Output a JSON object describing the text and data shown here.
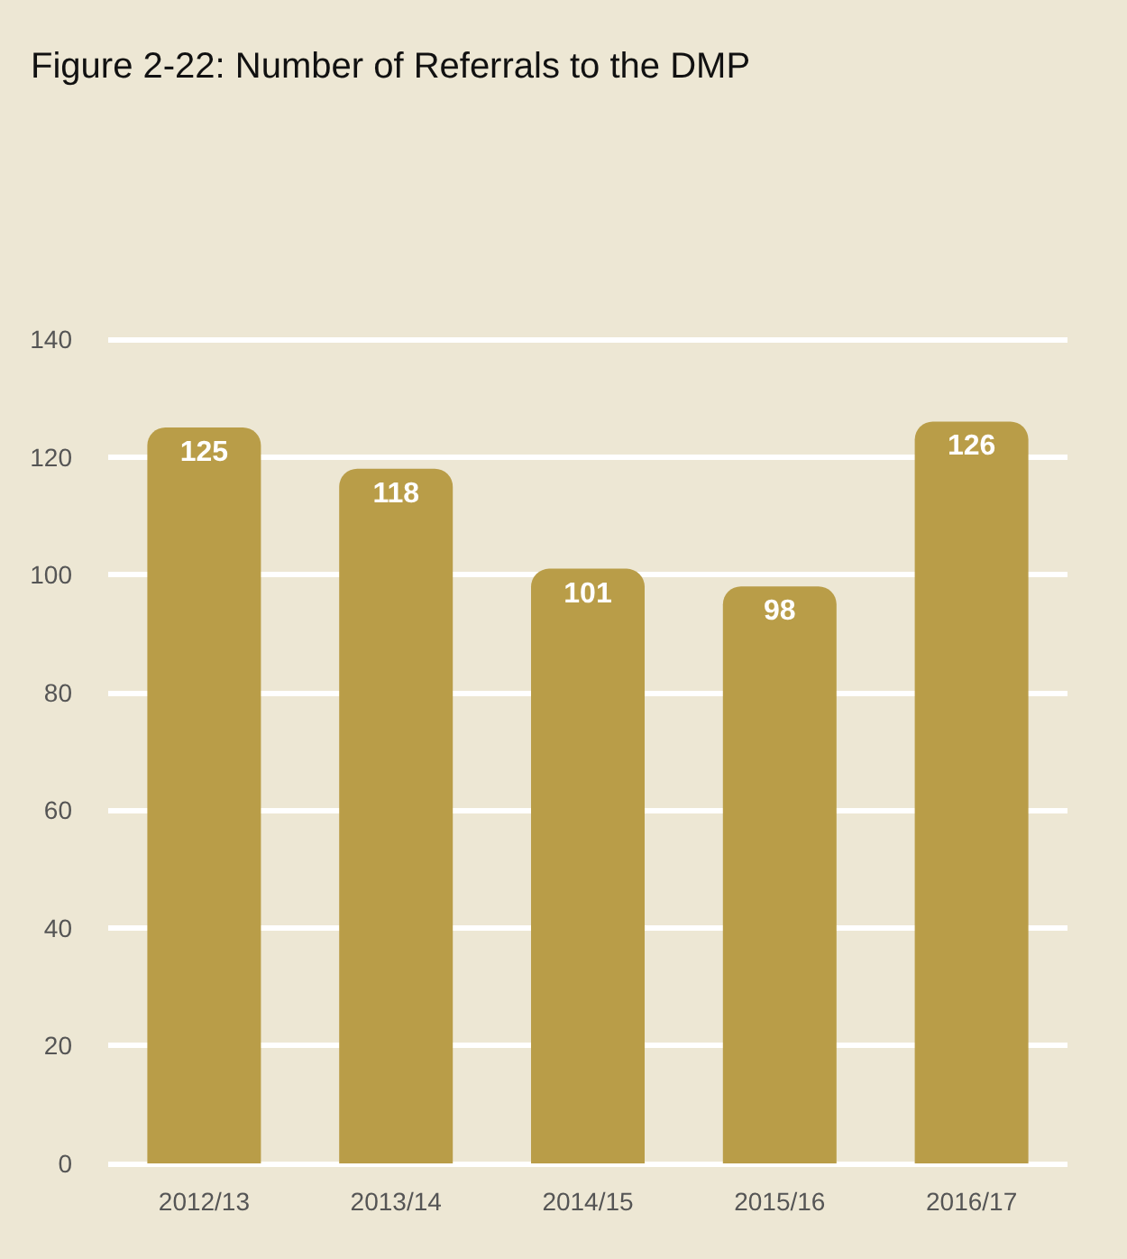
{
  "chart_data": {
    "type": "bar",
    "title": "Figure 2-22: Number of Referrals to the DMP",
    "categories": [
      "2012/13",
      "2013/14",
      "2014/15",
      "2015/16",
      "2016/17"
    ],
    "values": [
      125,
      118,
      101,
      98,
      126
    ],
    "color": "#b99d48",
    "ylim": [
      0,
      140
    ],
    "yticks": [
      0,
      20,
      40,
      60,
      80,
      100,
      120,
      140
    ],
    "grid": "y",
    "data_labels": true
  }
}
